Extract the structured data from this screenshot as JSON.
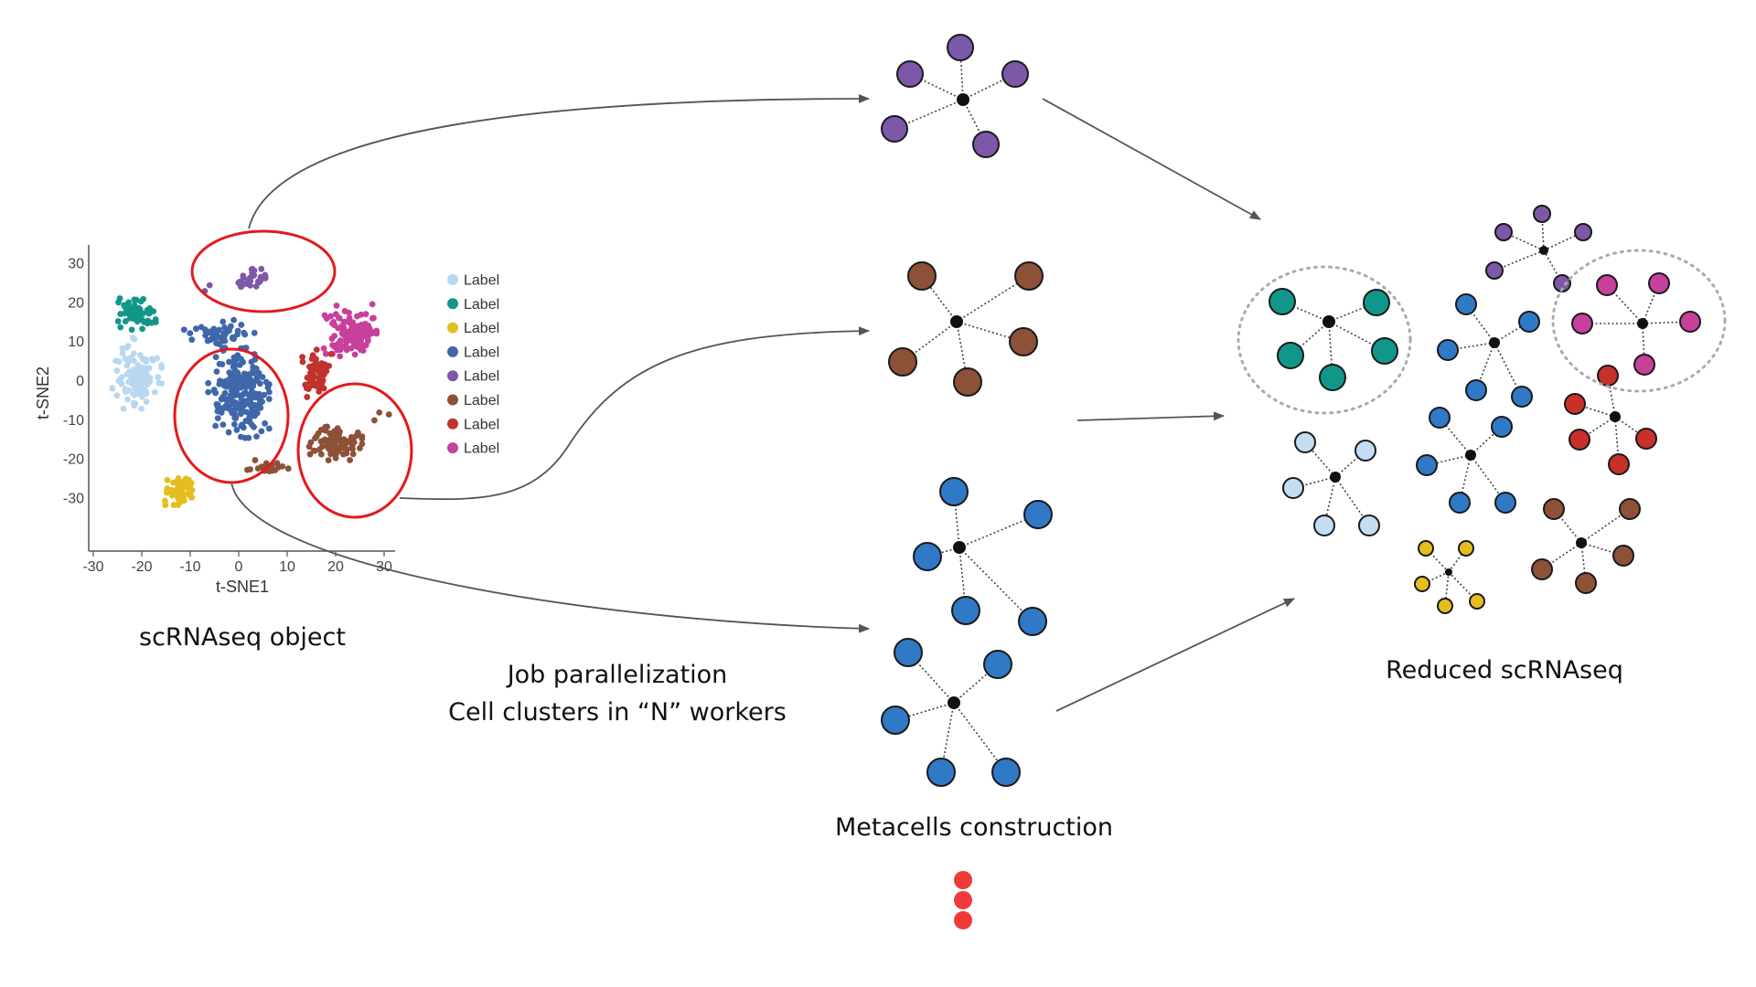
{
  "colors": {
    "light_blue": "#b9d8f0",
    "teal": "#11978a",
    "yellow": "#e6bd1f",
    "blue": "#3f67a9",
    "purple": "#7e58a8",
    "brown": "#8c5137",
    "red": "#c0332d",
    "magenta": "#c6409c",
    "node_blue": "#2f79c6",
    "node_light_blue": "#c4ddf2",
    "node_red": "#c8302a",
    "hub": "#111111",
    "highlight": "#e31a1c",
    "arrow": "#555555",
    "dots": "#ef3a3a"
  },
  "plot": {
    "xlabel": "t-SNE1",
    "ylabel": "t-SNE2",
    "x_ticks": [
      "-30",
      "-20",
      "-10",
      "0",
      "10",
      "20",
      "30"
    ],
    "y_ticks": [
      "30",
      "20",
      "10",
      "0",
      "-10",
      "-20",
      "-30"
    ],
    "xlim": [
      -30,
      30
    ],
    "ylim": [
      -35,
      32
    ],
    "legend": [
      {
        "label": "Label",
        "color": "#b9d8f0"
      },
      {
        "label": "Label",
        "color": "#11978a"
      },
      {
        "label": "Label",
        "color": "#e6bd1f"
      },
      {
        "label": "Label",
        "color": "#3f67a9"
      },
      {
        "label": "Label",
        "color": "#7e58a8"
      },
      {
        "label": "Label",
        "color": "#8c5137"
      },
      {
        "label": "Label",
        "color": "#c0332d"
      },
      {
        "label": "Label",
        "color": "#c6409c"
      }
    ]
  },
  "captions": {
    "object": "scRNAseq object",
    "job_line1": "Job parallelization",
    "job_line2": "Cell clusters in “N” workers",
    "metacells": "Metacells construction",
    "reduced": "Reduced scRNAseq"
  }
}
